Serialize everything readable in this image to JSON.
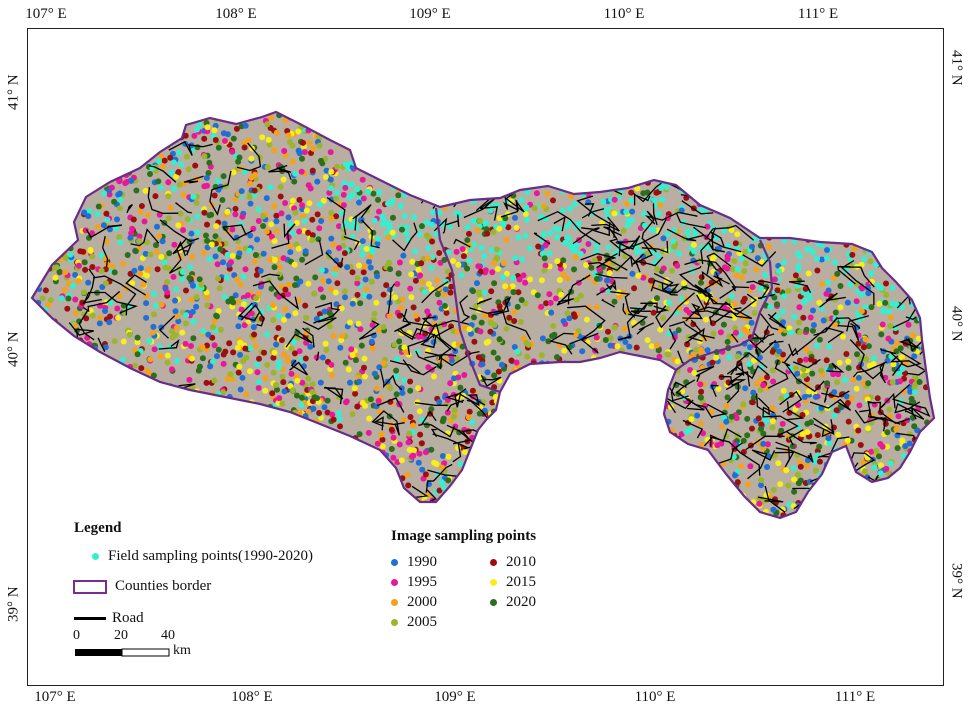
{
  "axes": {
    "top_lon": [
      "107° E",
      "108° E",
      "109° E",
      "110° E",
      "111° E"
    ],
    "bottom_lon": [
      "107° E",
      "108° E",
      "109° E",
      "110° E",
      "111° E"
    ],
    "left_lat": [
      "41° N",
      "40° N",
      "39° N"
    ],
    "right_lat": [
      "41° N",
      "40° N",
      "39° N"
    ]
  },
  "legend": {
    "title": "Legend",
    "field_points": "Field sampling points(1990-2020)",
    "counties": "Counties border",
    "road": "Road",
    "scale_ticks": [
      "0",
      "20",
      "40"
    ],
    "scale_unit": "km"
  },
  "image_sampling": {
    "title": "Image sampling points",
    "years": [
      {
        "label": "1990",
        "color": "#1f6fd6"
      },
      {
        "label": "1995",
        "color": "#e8189a"
      },
      {
        "label": "2000",
        "color": "#f4a21b"
      },
      {
        "label": "2005",
        "color": "#9bb52c"
      },
      {
        "label": "2010",
        "color": "#9b0f10"
      },
      {
        "label": "2015",
        "color": "#f7ef1a"
      },
      {
        "label": "2020",
        "color": "#2a6f1b"
      }
    ]
  },
  "colors": {
    "field": "#34f0d0",
    "county_border": "#6a2c8a",
    "road": "#000000",
    "land": "#b9aea2"
  }
}
